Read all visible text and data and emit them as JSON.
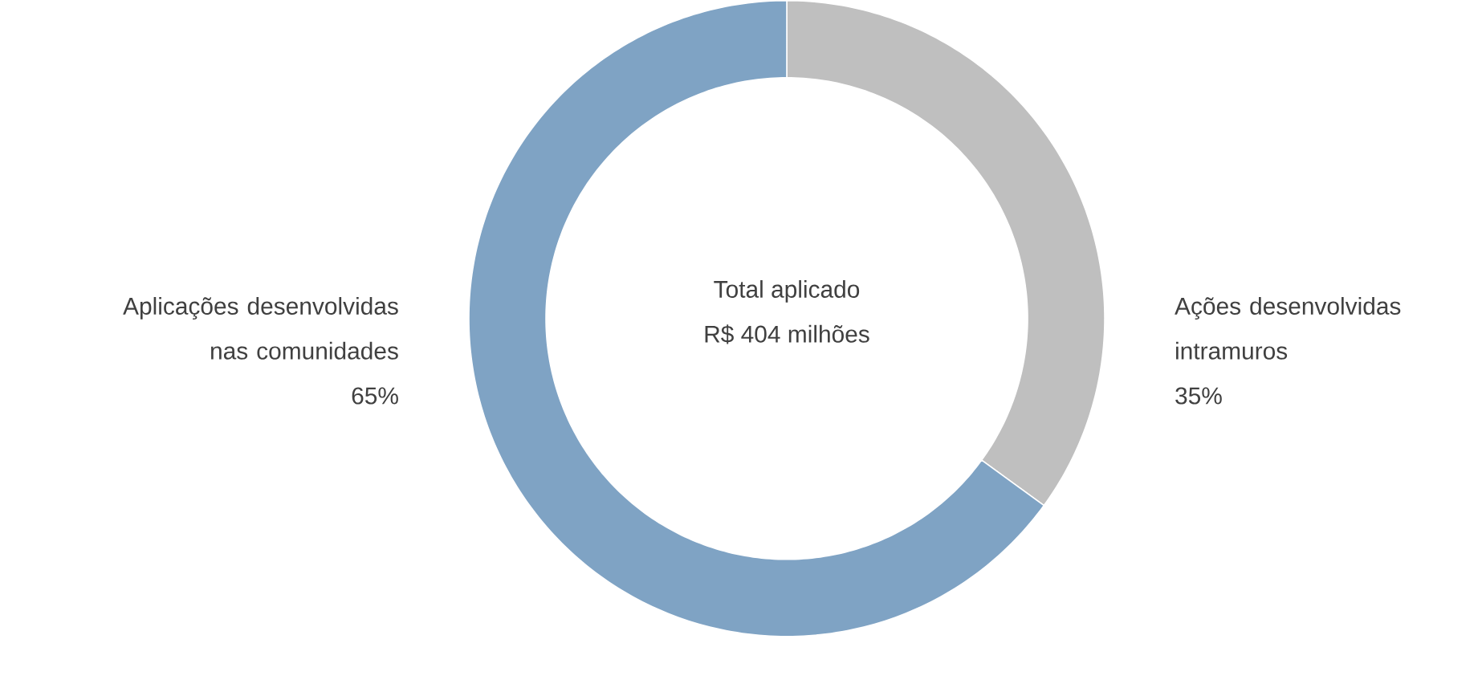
{
  "chart_data": {
    "type": "donut",
    "categories": [
      "Ações desenvolvidas intramuros",
      "Aplicações desenvolvidas nas comunidades"
    ],
    "values": [
      35,
      65
    ],
    "value_labels": [
      "35%",
      "65%"
    ],
    "colors": [
      "#bfbfbf",
      "#7fa3c4"
    ],
    "annotations": [
      "Total aplicado",
      "R$ 404 milhões"
    ]
  }
}
